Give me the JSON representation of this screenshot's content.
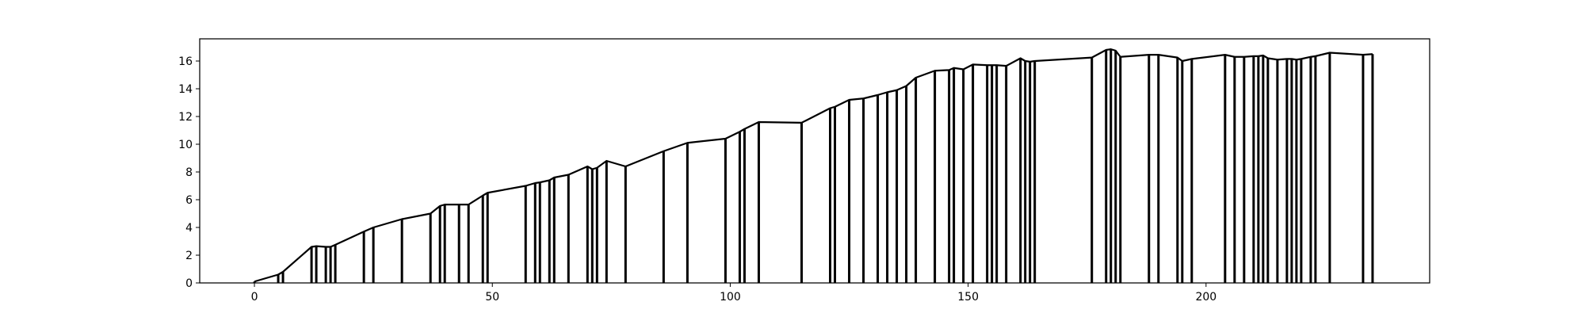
{
  "chart_data": {
    "type": "line",
    "title": "",
    "xlabel": "",
    "ylabel": "",
    "xlim": [
      -11.5,
      247
    ],
    "ylim": [
      0,
      17.6
    ],
    "x_ticks": [
      0,
      50,
      100,
      150,
      200
    ],
    "y_ticks": [
      0,
      2,
      4,
      6,
      8,
      10,
      12,
      14,
      16
    ],
    "grid": false,
    "legend": "none",
    "line_color": "#000000",
    "vertical_stems": true,
    "series": [
      {
        "x": [
          0,
          5,
          6,
          12,
          13,
          15,
          16,
          17,
          23,
          25,
          31,
          37,
          39,
          40,
          43,
          45,
          48,
          49,
          57,
          59,
          60,
          62,
          63,
          66,
          70,
          71,
          72,
          74,
          78,
          86,
          91,
          99,
          102,
          103,
          106,
          115,
          121,
          122,
          125,
          128,
          131,
          133,
          135,
          137,
          139,
          143,
          146,
          147,
          149,
          151,
          154,
          155,
          156,
          158,
          161,
          162,
          163,
          164,
          176,
          179,
          180,
          181,
          182,
          188,
          190,
          194,
          195,
          197,
          204,
          206,
          208,
          210,
          211,
          212,
          213,
          215,
          217,
          218,
          219,
          220,
          222,
          223,
          226,
          233,
          235
        ],
        "y": [
          0.1,
          0.6,
          0.8,
          2.6,
          2.65,
          2.6,
          2.6,
          2.75,
          3.7,
          4.0,
          4.6,
          5.0,
          5.55,
          5.65,
          5.65,
          5.65,
          6.3,
          6.5,
          7.0,
          7.2,
          7.25,
          7.4,
          7.6,
          7.8,
          8.4,
          8.2,
          8.3,
          8.8,
          8.4,
          9.5,
          10.1,
          10.4,
          10.9,
          11.1,
          11.6,
          11.55,
          12.6,
          12.7,
          13.2,
          13.3,
          13.55,
          13.75,
          13.9,
          14.2,
          14.8,
          15.3,
          15.35,
          15.5,
          15.4,
          15.75,
          15.7,
          15.7,
          15.7,
          15.65,
          16.2,
          16.0,
          15.95,
          16.0,
          16.25,
          16.8,
          16.85,
          16.75,
          16.3,
          16.45,
          16.45,
          16.25,
          16.0,
          16.15,
          16.45,
          16.3,
          16.3,
          16.35,
          16.35,
          16.4,
          16.2,
          16.1,
          16.15,
          16.15,
          16.1,
          16.15,
          16.3,
          16.35,
          16.6,
          16.45,
          16.5
        ]
      }
    ]
  }
}
